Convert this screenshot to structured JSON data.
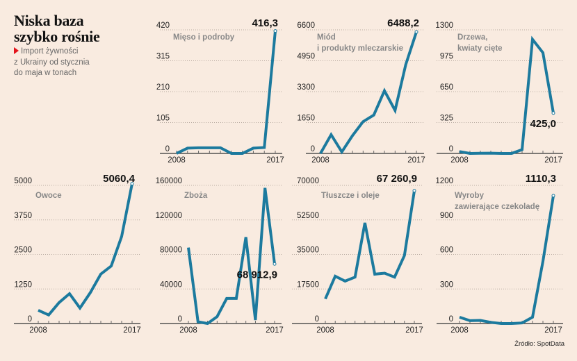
{
  "header": {
    "title_line1": "Niska baza",
    "title_line2": "szybko rośnie",
    "subtitle_line1": "Import żywności",
    "subtitle_line2": "z Ukrainy od stycznia",
    "subtitle_line3": "do maja w tonach"
  },
  "source": "Źródło: SpotData",
  "colors": {
    "line": "#1c7a9e",
    "background": "#f9ebe0",
    "accent": "#e4141b"
  },
  "chart_data": [
    {
      "type": "line",
      "title": "Mięso i podroby",
      "x": [
        2008,
        2009,
        2010,
        2011,
        2012,
        2013,
        2014,
        2015,
        2016,
        2017
      ],
      "values": [
        0,
        18,
        19,
        19,
        19,
        0,
        0,
        18,
        20,
        416.3
      ],
      "yticks": [
        "0",
        "105",
        "210",
        "315",
        "420"
      ],
      "ylim": [
        0,
        420
      ],
      "xtick_labels": [
        "2008",
        "2017"
      ],
      "end_label": "416,3",
      "end_label_position": "above"
    },
    {
      "type": "line",
      "title": "Miód\ni produkty mleczarskie",
      "title_lines": [
        "Miód",
        "i produkty mleczarskie"
      ],
      "x": [
        2008,
        2009,
        2010,
        2011,
        2012,
        2013,
        2014,
        2015,
        2016,
        2017
      ],
      "values": [
        0,
        1000,
        80,
        950,
        1700,
        2050,
        3350,
        2300,
        4750,
        6488.2
      ],
      "yticks": [
        "0",
        "1650",
        "3300",
        "4950",
        "6600"
      ],
      "ylim": [
        0,
        6600
      ],
      "xtick_labels": [
        "2008",
        "2017"
      ],
      "end_label": "6488,2",
      "end_label_position": "above"
    },
    {
      "type": "line",
      "title": "Drzewa, kwiaty cięte",
      "title_lines": [
        "Drzewa,",
        "kwiaty cięte"
      ],
      "x": [
        2008,
        2009,
        2010,
        2011,
        2012,
        2013,
        2014,
        2015,
        2016,
        2017
      ],
      "values": [
        20,
        0,
        2,
        3,
        0,
        0,
        40,
        1200,
        1060,
        425.0
      ],
      "yticks": [
        "0",
        "325",
        "650",
        "975",
        "1300"
      ],
      "ylim": [
        0,
        1300
      ],
      "xtick_labels": [
        "2008",
        "2017"
      ],
      "end_label": "425,0",
      "end_label_position": "below"
    },
    {
      "type": "line",
      "title": "Owoce",
      "title_lines": [
        "Owoce"
      ],
      "x": [
        2008,
        2009,
        2010,
        2011,
        2012,
        2013,
        2014,
        2015,
        2016,
        2017
      ],
      "values": [
        480,
        310,
        760,
        1080,
        560,
        1120,
        1790,
        2080,
        3150,
        5060.4
      ],
      "yticks": [
        "0",
        "1250",
        "2500",
        "3750",
        "5000"
      ],
      "ylim": [
        0,
        5000
      ],
      "xtick_labels": [
        "2008",
        "2017"
      ],
      "end_label": "5060,4",
      "end_label_position": "above"
    },
    {
      "type": "line",
      "title": "Zboża",
      "title_lines": [
        "Zboża"
      ],
      "x": [
        2008,
        2009,
        2010,
        2011,
        2012,
        2013,
        2014,
        2015,
        2016,
        2017
      ],
      "values": [
        88000,
        2000,
        0,
        8000,
        29000,
        29000,
        100000,
        4000,
        157000,
        68912.9
      ],
      "yticks": [
        "0",
        "40000",
        "80000",
        "120000",
        "160000"
      ],
      "ylim": [
        0,
        160000
      ],
      "xtick_labels": [
        "2008",
        "2017"
      ],
      "end_label": "68 912,9",
      "end_label_position": "below"
    },
    {
      "type": "line",
      "title": "Tłuszcze i oleje",
      "title_lines": [
        "Tłuszcze i oleje"
      ],
      "x": [
        2008,
        2009,
        2010,
        2011,
        2012,
        2013,
        2014,
        2015,
        2016,
        2017
      ],
      "values": [
        12500,
        24000,
        21500,
        23500,
        51000,
        25000,
        25500,
        23500,
        34500,
        67260.9
      ],
      "yticks": [
        "0",
        "17500",
        "35000",
        "52500",
        "70000"
      ],
      "ylim": [
        0,
        70000
      ],
      "xtick_labels": [
        "2008",
        "2017"
      ],
      "end_label": "67 260,9",
      "end_label_position": "above"
    },
    {
      "type": "line",
      "title": "Wyroby zawierające czekoladę",
      "title_lines": [
        "Wyroby",
        "zawierające czekoladę"
      ],
      "x": [
        2008,
        2009,
        2010,
        2011,
        2012,
        2013,
        2014,
        2015,
        2016,
        2017
      ],
      "values": [
        55,
        25,
        27,
        10,
        0,
        0,
        5,
        55,
        540,
        1110.3
      ],
      "yticks": [
        "0",
        "300",
        "600",
        "900",
        "1200"
      ],
      "ylim": [
        0,
        1200
      ],
      "xtick_labels": [
        "2008",
        "2017"
      ],
      "end_label": "1110,3",
      "end_label_position": "above"
    }
  ]
}
